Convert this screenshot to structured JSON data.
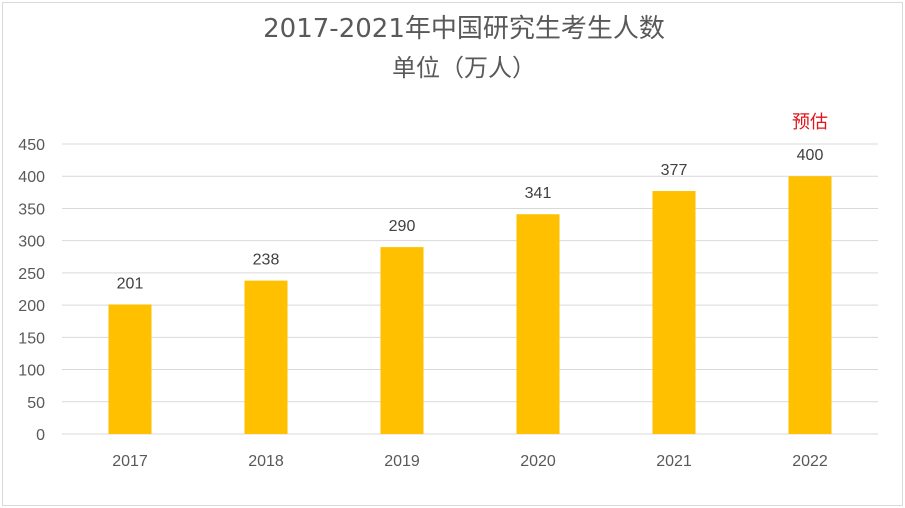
{
  "chart_data": {
    "type": "bar",
    "title": "2017-2021年中国研究生考生人数",
    "subtitle": "单位（万人）",
    "categories": [
      "2017",
      "2018",
      "2019",
      "2020",
      "2021",
      "2022"
    ],
    "values": [
      201,
      238,
      290,
      341,
      377,
      400
    ],
    "ylim": [
      0,
      450
    ],
    "yticks": [
      0,
      50,
      100,
      150,
      200,
      250,
      300,
      350,
      400,
      450
    ],
    "bar_color": "#FFC000",
    "grid": true,
    "legend": "none",
    "annotation": {
      "text": "预估",
      "category": "2022",
      "color": "#E0161B"
    }
  }
}
